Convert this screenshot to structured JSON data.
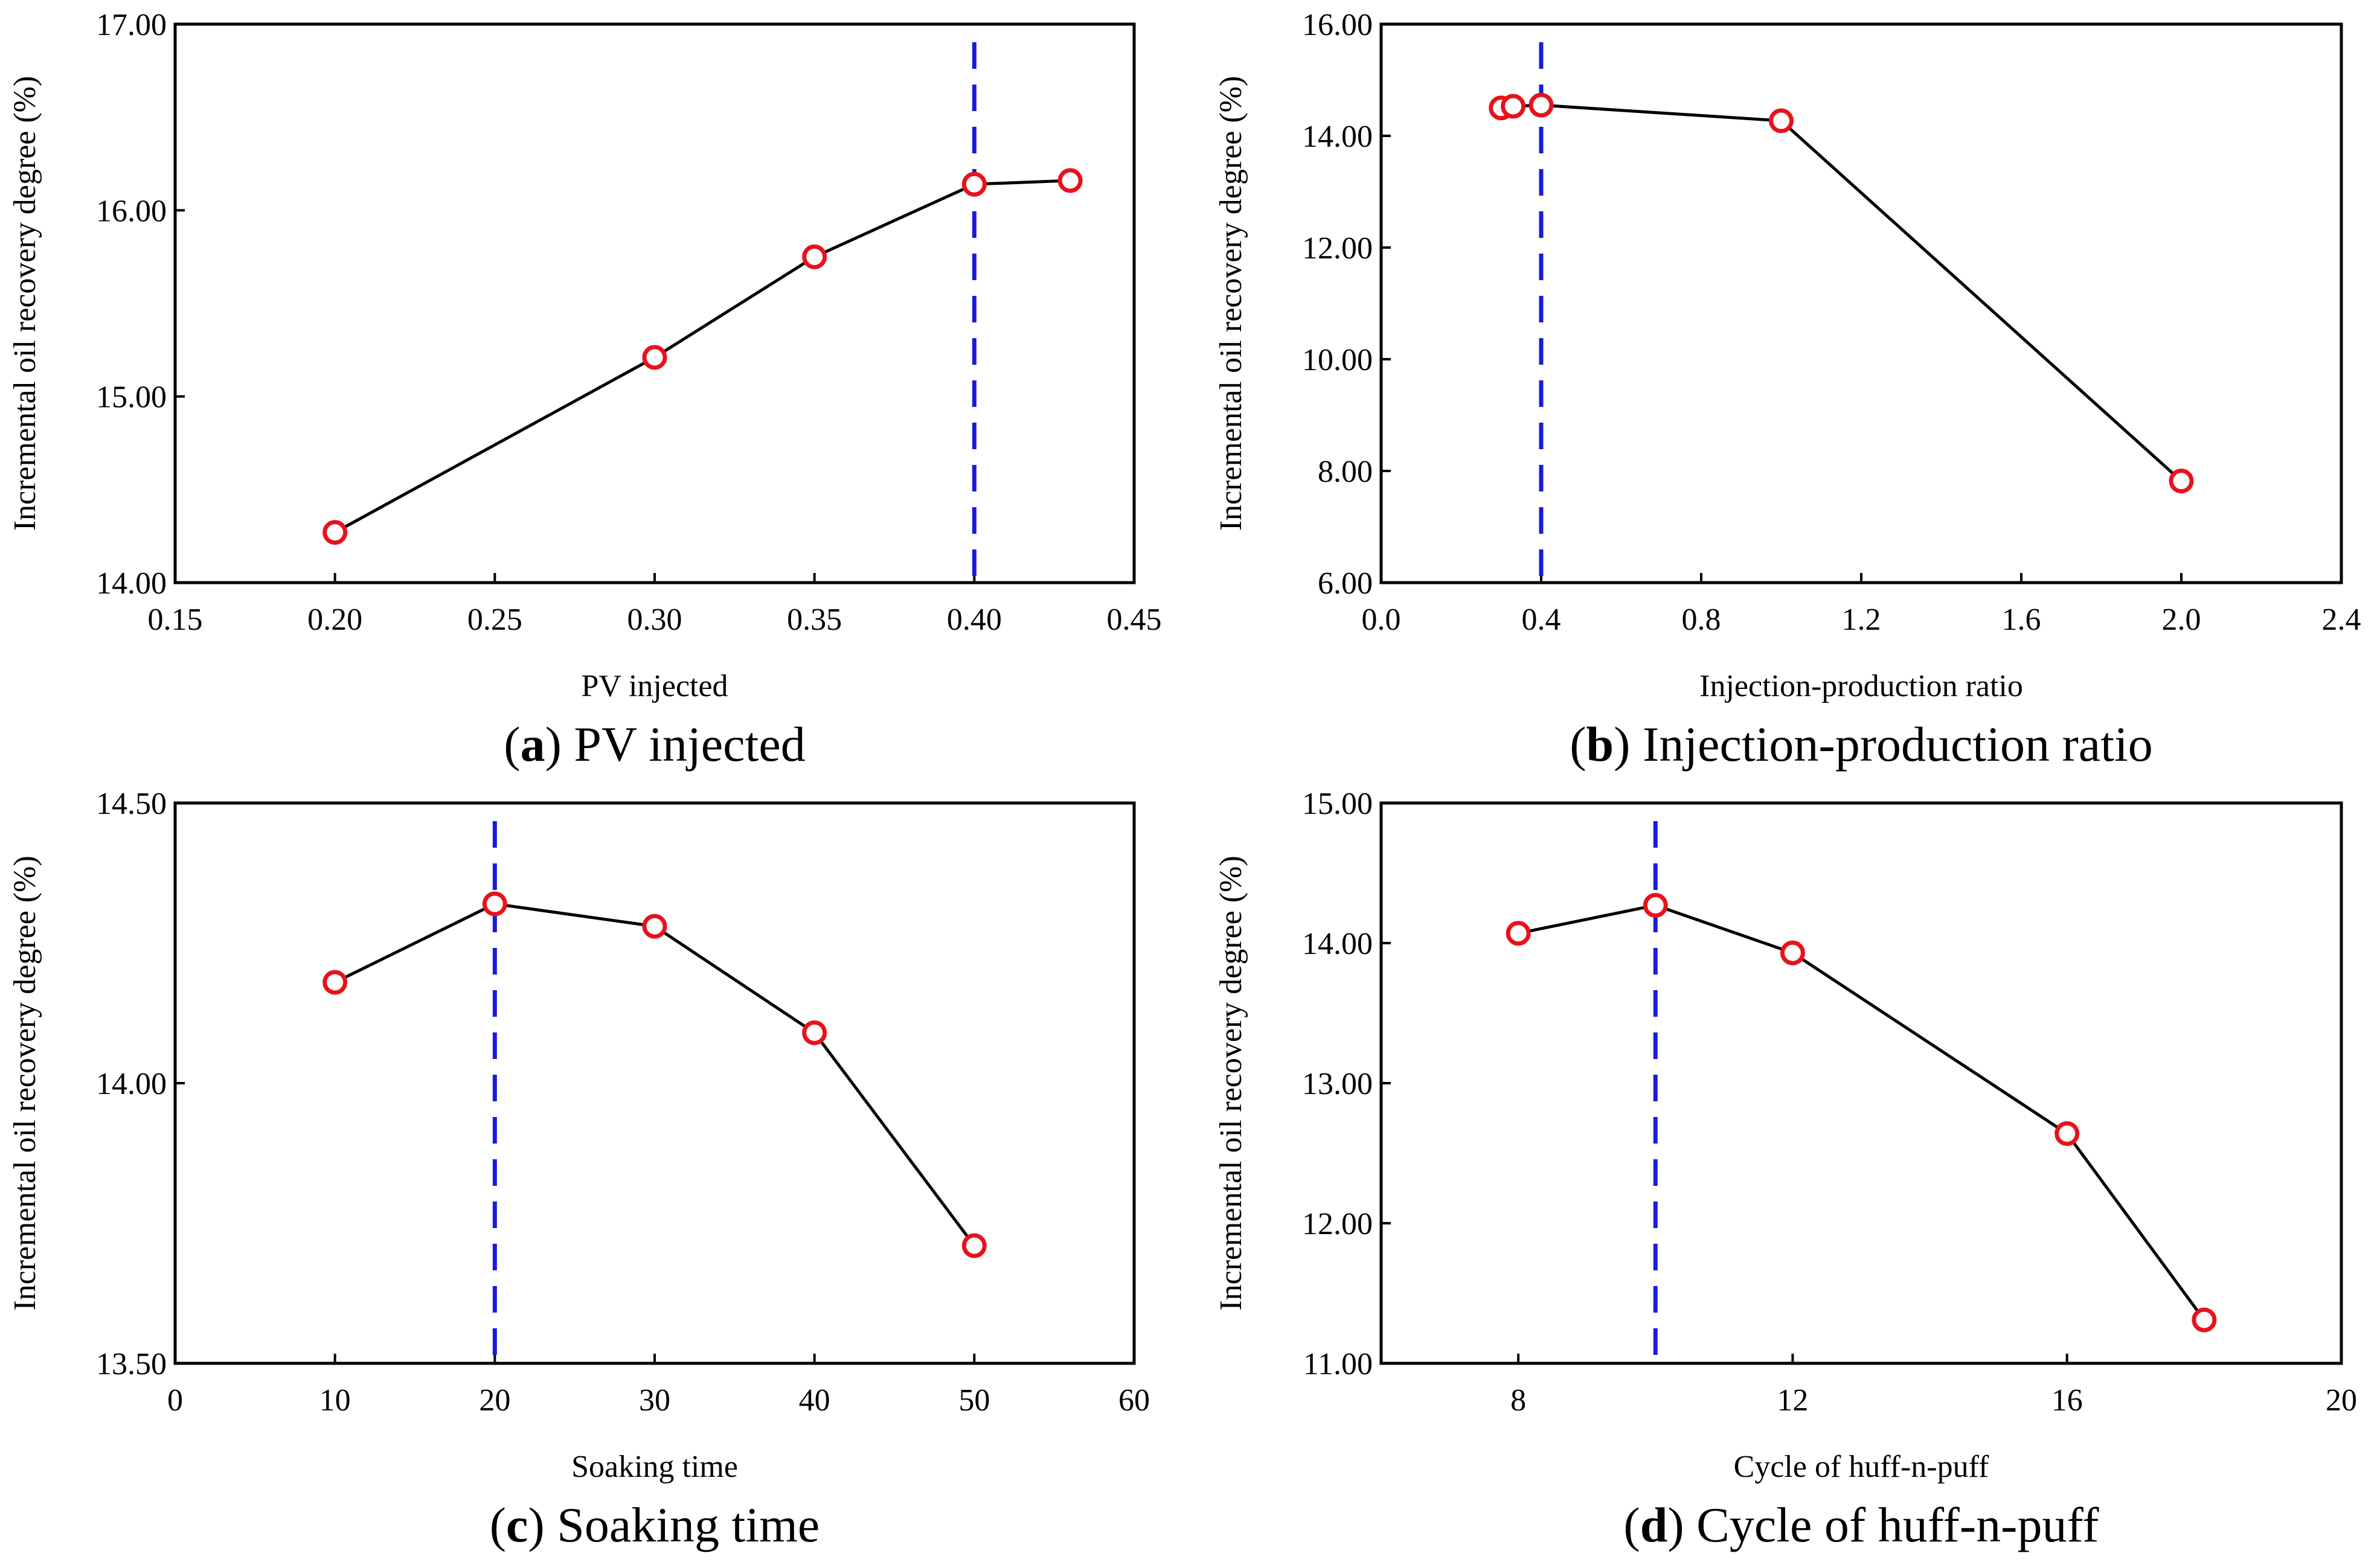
{
  "colors": {
    "line": "#000000",
    "marker": "#e8121a",
    "reference": "#1a1adb",
    "frame": "#000000",
    "background": "#ffffff"
  },
  "chart_data": [
    {
      "id": "a",
      "type": "line",
      "caption_letter": "a",
      "caption_text": "PV injected",
      "xlabel": "PV injected",
      "ylabel": "Incremental oil recovery degree (%)",
      "xlim": [
        0.15,
        0.45
      ],
      "ylim": [
        14.0,
        17.0
      ],
      "xticks": [
        0.15,
        0.2,
        0.25,
        0.3,
        0.35,
        0.4,
        0.45
      ],
      "xtick_labels": [
        "0.15",
        "0.20",
        "0.25",
        "0.30",
        "0.35",
        "0.40",
        "0.45"
      ],
      "yticks": [
        14.0,
        15.0,
        16.0,
        17.0
      ],
      "ytick_labels": [
        "14.00",
        "15.00",
        "16.00",
        "17.00"
      ],
      "x": [
        0.2,
        0.3,
        0.35,
        0.4,
        0.43
      ],
      "y": [
        14.27,
        15.21,
        15.75,
        16.14,
        16.16
      ],
      "reference_x": 0.4
    },
    {
      "id": "b",
      "type": "line",
      "caption_letter": "b",
      "caption_text": "Injection-production ratio",
      "xlabel": "Injection-production ratio",
      "ylabel": "Incremental oil recovery degree (%)",
      "xlim": [
        0.0,
        2.4
      ],
      "ylim": [
        6.0,
        16.0
      ],
      "xticks": [
        0.0,
        0.4,
        0.8,
        1.2,
        1.6,
        2.0,
        2.4
      ],
      "xtick_labels": [
        "0.0",
        "0.4",
        "0.8",
        "1.2",
        "1.6",
        "2.0",
        "2.4"
      ],
      "yticks": [
        6.0,
        8.0,
        10.0,
        12.0,
        14.0,
        16.0
      ],
      "ytick_labels": [
        "6.00",
        "8.00",
        "10.00",
        "12.00",
        "14.00",
        "16.00"
      ],
      "x": [
        0.3,
        0.33,
        0.4,
        1.0,
        2.0
      ],
      "y": [
        14.5,
        14.53,
        14.55,
        14.27,
        7.82
      ],
      "reference_x": 0.4
    },
    {
      "id": "c",
      "type": "line",
      "caption_letter": "c",
      "caption_text": "Soaking time",
      "xlabel": "Soaking time",
      "ylabel": "Incremental oil recovery degree (%)",
      "xlim": [
        0,
        60
      ],
      "ylim": [
        13.5,
        14.5
      ],
      "xticks": [
        0,
        10,
        20,
        30,
        40,
        50,
        60
      ],
      "xtick_labels": [
        "0",
        "10",
        "20",
        "30",
        "40",
        "50",
        "60"
      ],
      "yticks": [
        13.5,
        14.0,
        14.5
      ],
      "ytick_labels": [
        "13.50",
        "14.00",
        "14.50"
      ],
      "x": [
        10,
        20,
        30,
        40,
        50
      ],
      "y": [
        14.18,
        14.32,
        14.28,
        14.09,
        13.71
      ],
      "reference_x": 20
    },
    {
      "id": "d",
      "type": "line",
      "caption_letter": "d",
      "caption_text": "Cycle of huff-n-puff",
      "xlabel": "Cycle of huff-n-puff",
      "ylabel": "Incremental oil recovery degree (%)",
      "xlim": [
        6,
        20
      ],
      "ylim": [
        11.0,
        15.0
      ],
      "xticks": [
        8,
        12,
        16,
        20
      ],
      "xtick_labels": [
        "8",
        "12",
        "16",
        "20"
      ],
      "yticks": [
        11.0,
        12.0,
        13.0,
        14.0,
        15.0
      ],
      "ytick_labels": [
        "11.00",
        "12.00",
        "13.00",
        "14.00",
        "15.00"
      ],
      "x": [
        8,
        10,
        12,
        16,
        18
      ],
      "y": [
        14.07,
        14.27,
        13.93,
        12.64,
        11.31
      ],
      "reference_x": 10
    }
  ]
}
